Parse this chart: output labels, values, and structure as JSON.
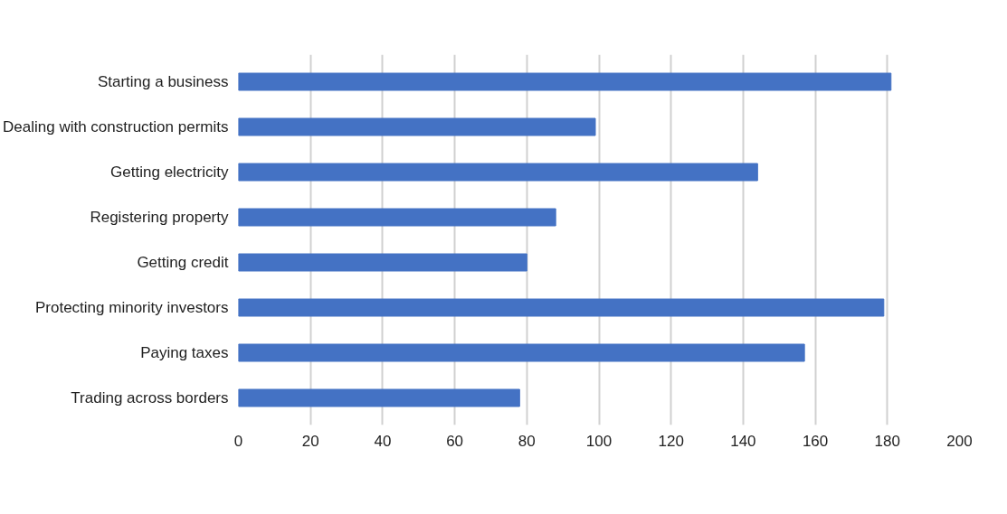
{
  "chart_data": {
    "type": "bar",
    "orientation": "horizontal",
    "categories": [
      "Starting a business",
      "Dealing with construction permits",
      "Getting electricity",
      "Registering property",
      "Getting credit",
      "Protecting minority investors",
      "Paying taxes",
      "Trading across borders"
    ],
    "values": [
      181,
      99,
      144,
      88,
      80,
      179,
      157,
      78
    ],
    "color": "#4472c4",
    "xlim": [
      0,
      200
    ],
    "xticks": [
      0,
      20,
      40,
      60,
      80,
      100,
      120,
      140,
      160,
      180,
      200
    ],
    "grid": "x"
  }
}
